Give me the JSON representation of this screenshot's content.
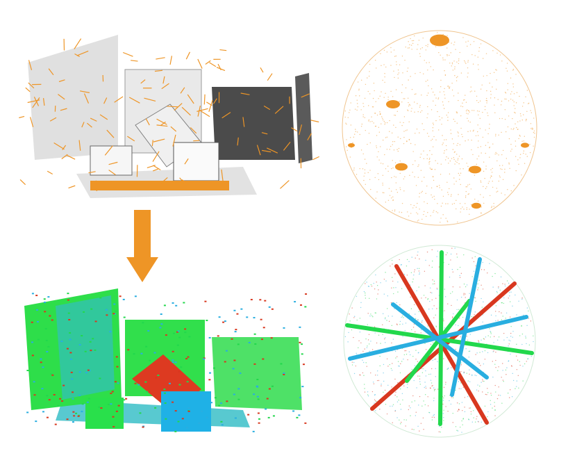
{
  "figure": {
    "description_visible_text": [],
    "colors": {
      "normal_orange": "#ee9526",
      "axis_red": "#d8381f",
      "axis_green": "#22d84c",
      "axis_blue": "#29aee0",
      "grey_points": "#8a8a8a",
      "dark_points": "#222222"
    }
  },
  "panels": {
    "top_left": {
      "icon": "point-cloud-with-normals"
    },
    "top_right": {
      "icon": "normal-sphere-orange"
    },
    "arrow": {
      "icon": "down-arrow-icon"
    },
    "bottom_left": {
      "icon": "segmented-point-cloud"
    },
    "bottom_right": {
      "icon": "sphere-with-axes"
    }
  }
}
